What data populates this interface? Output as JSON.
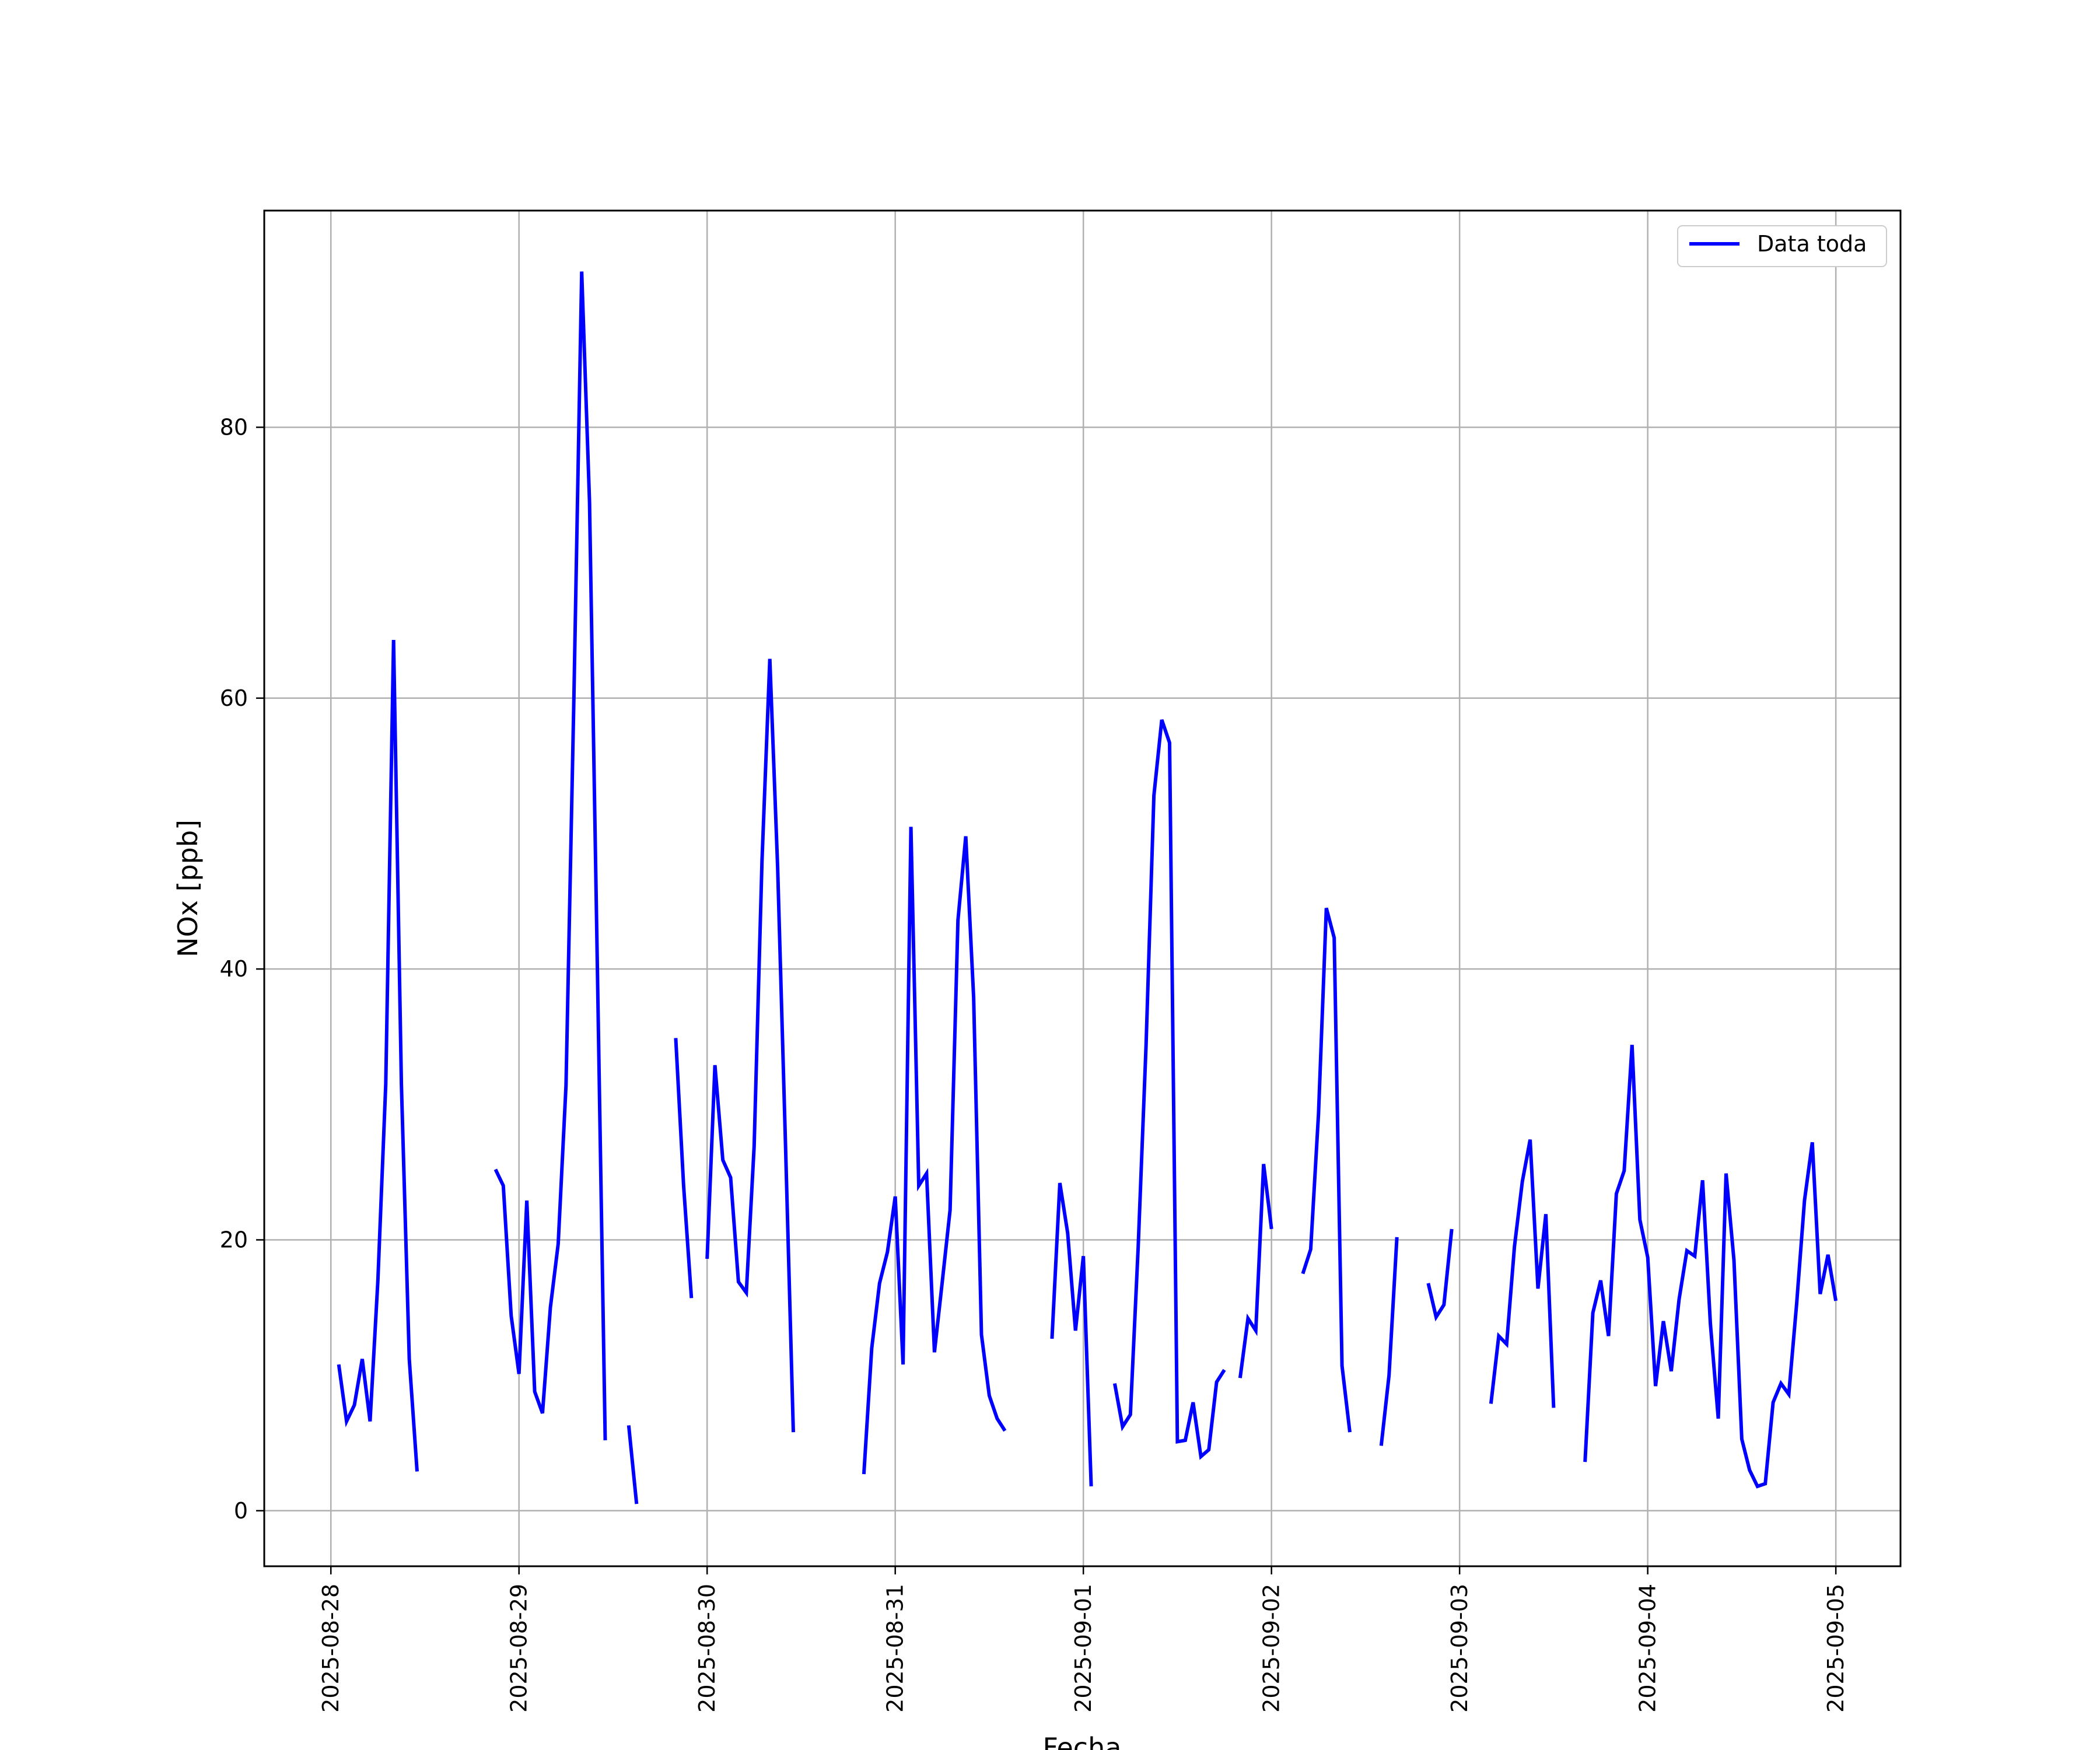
{
  "chart_data": {
    "type": "line",
    "xlabel": "Fecha",
    "ylabel": "NOx [ppb]",
    "ylim": [
      -4.1,
      96.0
    ],
    "xlim": [
      "2025-08-27 15:30",
      "2025-09-05 08:15"
    ],
    "x_ticks": [
      "2025-08-28",
      "2025-08-29",
      "2025-08-30",
      "2025-08-31",
      "2025-09-01",
      "2025-09-02",
      "2025-09-03",
      "2025-09-04",
      "2025-09-05"
    ],
    "y_ticks": [
      0,
      20,
      40,
      60,
      80
    ],
    "grid": true,
    "legend_placement": "top-right",
    "color": "#0000ff",
    "series": [
      {
        "name": "Data toda",
        "segments": [
          [
            [
              "2025-08-28 01:00",
              10.8
            ],
            [
              "2025-08-28 02:00",
              6.6
            ],
            [
              "2025-08-28 03:00",
              7.8
            ],
            [
              "2025-08-28 04:00",
              11.2
            ],
            [
              "2025-08-28 05:00",
              6.6
            ],
            [
              "2025-08-28 06:00",
              17.0
            ],
            [
              "2025-08-28 07:00",
              31.5
            ],
            [
              "2025-08-28 08:00",
              64.3
            ],
            [
              "2025-08-28 09:00",
              31.5
            ],
            [
              "2025-08-28 10:00",
              11.2
            ],
            [
              "2025-08-28 11:00",
              2.9
            ]
          ],
          [
            [
              "2025-08-28 21:00",
              25.2
            ],
            [
              "2025-08-28 22:00",
              24.0
            ],
            [
              "2025-08-28 23:00",
              14.4
            ],
            [
              "2025-08-29 00:00",
              10.1
            ],
            [
              "2025-08-29 01:00",
              22.9
            ],
            [
              "2025-08-29 02:00",
              8.8
            ],
            [
              "2025-08-29 03:00",
              7.2
            ],
            [
              "2025-08-29 04:00",
              15.0
            ],
            [
              "2025-08-29 05:00",
              19.7
            ],
            [
              "2025-08-29 06:00",
              31.4
            ],
            [
              "2025-08-29 07:00",
              60.0
            ],
            [
              "2025-08-29 08:00",
              91.5
            ],
            [
              "2025-08-29 09:00",
              74.5
            ],
            [
              "2025-08-29 10:00",
              40.0
            ],
            [
              "2025-08-29 11:00",
              5.2
            ]
          ],
          [
            [
              "2025-08-29 14:00",
              6.3
            ],
            [
              "2025-08-29 15:00",
              0.5
            ]
          ],
          [
            [
              "2025-08-29 20:00",
              34.9
            ],
            [
              "2025-08-29 21:00",
              24.0
            ],
            [
              "2025-08-29 22:00",
              15.7
            ]
          ],
          [
            [
              "2025-08-30 00:00",
              18.6
            ],
            [
              "2025-08-30 01:00",
              32.9
            ],
            [
              "2025-08-30 02:00",
              25.9
            ],
            [
              "2025-08-30 03:00",
              24.6
            ],
            [
              "2025-08-30 04:00",
              16.9
            ],
            [
              "2025-08-30 05:00",
              16.1
            ],
            [
              "2025-08-30 06:00",
              26.9
            ],
            [
              "2025-08-30 07:00",
              48.0
            ],
            [
              "2025-08-30 08:00",
              62.9
            ],
            [
              "2025-08-30 09:00",
              47.5
            ],
            [
              "2025-08-30 10:00",
              27.0
            ],
            [
              "2025-08-30 11:00",
              5.8
            ]
          ],
          [
            [
              "2025-08-30 20:00",
              2.7
            ],
            [
              "2025-08-30 21:00",
              12.0
            ],
            [
              "2025-08-30 22:00",
              16.8
            ],
            [
              "2025-08-30 23:00",
              19.1
            ],
            [
              "2025-08-31 00:00",
              23.2
            ],
            [
              "2025-08-31 01:00",
              10.8
            ],
            [
              "2025-08-31 02:00",
              50.5
            ],
            [
              "2025-08-31 03:00",
              24.0
            ],
            [
              "2025-08-31 04:00",
              24.9
            ],
            [
              "2025-08-31 05:00",
              11.7
            ],
            [
              "2025-08-31 06:00",
              16.9
            ],
            [
              "2025-08-31 07:00",
              22.2
            ],
            [
              "2025-08-31 08:00",
              43.6
            ],
            [
              "2025-08-31 09:00",
              49.8
            ],
            [
              "2025-08-31 10:00",
              37.9
            ],
            [
              "2025-08-31 11:00",
              13.0
            ],
            [
              "2025-08-31 12:00",
              8.5
            ],
            [
              "2025-08-31 13:00",
              6.8
            ],
            [
              "2025-08-31 14:00",
              5.9
            ]
          ],
          [
            [
              "2025-08-31 20:00",
              12.7
            ],
            [
              "2025-08-31 21:00",
              24.2
            ],
            [
              "2025-08-31 22:00",
              20.5
            ],
            [
              "2025-08-31 23:00",
              13.3
            ],
            [
              "2025-09-01 00:00",
              18.8
            ],
            [
              "2025-09-01 01:00",
              1.8
            ]
          ],
          [
            [
              "2025-09-01 04:00",
              9.4
            ],
            [
              "2025-09-01 05:00",
              6.2
            ],
            [
              "2025-09-01 06:00",
              7.1
            ],
            [
              "2025-09-01 07:00",
              19.5
            ],
            [
              "2025-09-01 08:00",
              34.4
            ],
            [
              "2025-09-01 09:00",
              52.8
            ],
            [
              "2025-09-01 10:00",
              58.4
            ],
            [
              "2025-09-01 11:00",
              56.7
            ],
            [
              "2025-09-01 12:00",
              5.1
            ],
            [
              "2025-09-01 13:00",
              5.2
            ],
            [
              "2025-09-01 14:00",
              8.0
            ],
            [
              "2025-09-01 15:00",
              4.0
            ],
            [
              "2025-09-01 16:00",
              4.5
            ],
            [
              "2025-09-01 17:00",
              9.5
            ],
            [
              "2025-09-01 18:00",
              10.4
            ]
          ],
          [
            [
              "2025-09-01 20:00",
              9.8
            ],
            [
              "2025-09-01 21:00",
              14.2
            ],
            [
              "2025-09-01 22:00",
              13.3
            ],
            [
              "2025-09-01 23:00",
              25.6
            ],
            [
              "2025-09-02 00:00",
              20.8
            ]
          ],
          [
            [
              "2025-09-02 04:00",
              17.5
            ],
            [
              "2025-09-02 05:00",
              19.3
            ],
            [
              "2025-09-02 06:00",
              29.3
            ],
            [
              "2025-09-02 07:00",
              44.5
            ],
            [
              "2025-09-02 08:00",
              42.3
            ],
            [
              "2025-09-02 09:00",
              10.7
            ],
            [
              "2025-09-02 10:00",
              5.8
            ]
          ],
          [
            [
              "2025-09-02 14:00",
              4.8
            ],
            [
              "2025-09-02 15:00",
              10.0
            ],
            [
              "2025-09-02 16:00",
              20.2
            ]
          ],
          [
            [
              "2025-09-02 20:00",
              16.8
            ],
            [
              "2025-09-02 21:00",
              14.3
            ],
            [
              "2025-09-02 22:00",
              15.2
            ],
            [
              "2025-09-02 23:00",
              20.8
            ]
          ],
          [
            [
              "2025-09-03 04:00",
              7.9
            ],
            [
              "2025-09-03 05:00",
              12.9
            ],
            [
              "2025-09-03 06:00",
              12.3
            ],
            [
              "2025-09-03 07:00",
              19.5
            ],
            [
              "2025-09-03 08:00",
              24.3
            ],
            [
              "2025-09-03 09:00",
              27.4
            ],
            [
              "2025-09-03 10:00",
              16.4
            ],
            [
              "2025-09-03 11:00",
              21.9
            ],
            [
              "2025-09-03 12:00",
              7.6
            ]
          ],
          [
            [
              "2025-09-03 16:00",
              3.6
            ],
            [
              "2025-09-03 17:00",
              14.6
            ],
            [
              "2025-09-03 18:00",
              17.0
            ],
            [
              "2025-09-03 19:00",
              12.9
            ],
            [
              "2025-09-03 20:00",
              23.4
            ],
            [
              "2025-09-03 21:00",
              25.1
            ],
            [
              "2025-09-03 22:00",
              34.4
            ],
            [
              "2025-09-03 23:00",
              21.5
            ],
            [
              "2025-09-04 00:00",
              18.7
            ],
            [
              "2025-09-04 01:00",
              9.2
            ],
            [
              "2025-09-04 02:00",
              14.0
            ],
            [
              "2025-09-04 03:00",
              10.3
            ],
            [
              "2025-09-04 04:00",
              15.6
            ],
            [
              "2025-09-04 05:00",
              19.2
            ],
            [
              "2025-09-04 06:00",
              18.8
            ],
            [
              "2025-09-04 07:00",
              24.4
            ],
            [
              "2025-09-04 08:00",
              13.8
            ],
            [
              "2025-09-04 09:00",
              6.8
            ],
            [
              "2025-09-04 10:00",
              24.9
            ],
            [
              "2025-09-04 11:00",
              18.5
            ],
            [
              "2025-09-04 12:00",
              5.3
            ],
            [
              "2025-09-04 13:00",
              3.0
            ],
            [
              "2025-09-04 14:00",
              1.8
            ],
            [
              "2025-09-04 15:00",
              2.0
            ],
            [
              "2025-09-04 16:00",
              8.0
            ],
            [
              "2025-09-04 17:00",
              9.4
            ],
            [
              "2025-09-04 18:00",
              8.6
            ],
            [
              "2025-09-04 19:00",
              15.3
            ],
            [
              "2025-09-04 20:00",
              22.9
            ],
            [
              "2025-09-04 21:00",
              27.2
            ],
            [
              "2025-09-04 22:00",
              16.0
            ],
            [
              "2025-09-04 23:00",
              18.9
            ],
            [
              "2025-09-05 00:00",
              15.5
            ]
          ]
        ]
      }
    ]
  }
}
